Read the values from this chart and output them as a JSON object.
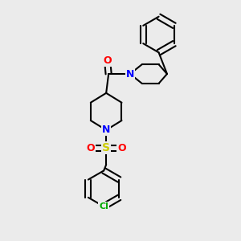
{
  "background_color": "#ebebeb",
  "line_color": "#000000",
  "line_width": 1.5,
  "atom_colors": {
    "N": "#0000ff",
    "O": "#ff0000",
    "S": "#cccc00",
    "Cl": "#00aa00",
    "C": "#000000"
  },
  "font_size_atom": 9,
  "figsize": [
    3.0,
    3.0
  ],
  "dpi": 100
}
